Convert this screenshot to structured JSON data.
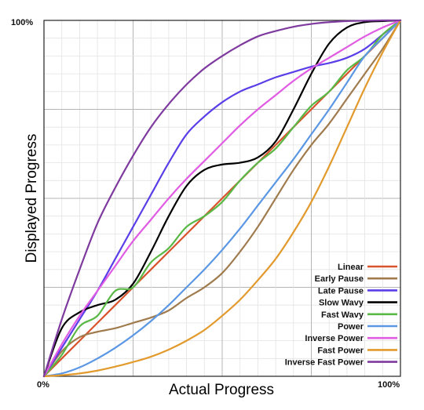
{
  "chart_data": {
    "type": "line",
    "xlabel": "Actual Progress",
    "ylabel": "Displayed Progress",
    "xlim": [
      0,
      100
    ],
    "ylim": [
      0,
      100
    ],
    "x_tick_labels": [
      "0%",
      "100%"
    ],
    "y_tick_labels": [
      "100%"
    ],
    "grid": true,
    "legend_position": "bottom-right",
    "x": [
      0,
      5,
      10,
      15,
      20,
      25,
      30,
      35,
      40,
      45,
      50,
      55,
      60,
      65,
      70,
      75,
      80,
      85,
      90,
      95,
      100
    ],
    "series": [
      {
        "name": "Linear",
        "color": "#d9542c",
        "values": [
          0,
          5,
          10,
          15,
          20,
          25,
          30,
          35,
          40,
          45,
          50,
          55,
          60,
          65,
          70,
          75,
          80,
          85,
          90,
          95,
          100
        ]
      },
      {
        "name": "Early Pause",
        "color": "#a07b4e",
        "values": [
          0,
          7,
          11,
          12.5,
          13.5,
          15,
          16.5,
          18.5,
          22,
          25,
          29,
          35,
          42,
          50,
          58,
          65,
          71,
          78,
          85,
          92,
          100
        ]
      },
      {
        "name": "Late Pause",
        "color": "#5a3ee8",
        "values": [
          0,
          8,
          16,
          24,
          33,
          42,
          51,
          60,
          68,
          73,
          77,
          80,
          82,
          84,
          85.5,
          87,
          88,
          89.5,
          92,
          96,
          100
        ]
      },
      {
        "name": "Slow Wavy",
        "color": "#000000",
        "values": [
          0,
          13.5,
          18,
          20,
          21.5,
          26,
          35,
          45,
          53.5,
          58,
          59.5,
          60,
          61.5,
          66,
          75,
          85,
          93.5,
          98,
          99.5,
          99.8,
          100
        ]
      },
      {
        "name": "Fast Wavy",
        "color": "#5ab846",
        "values": [
          0,
          6,
          14,
          17,
          24,
          25,
          32,
          36,
          42,
          45,
          49,
          55,
          60,
          64,
          70,
          76,
          80,
          86,
          90,
          96,
          100
        ]
      },
      {
        "name": "Power",
        "color": "#5b97e4",
        "values": [
          0,
          0.8,
          2.5,
          5,
          8,
          11.5,
          15.5,
          20,
          25,
          30,
          35.5,
          41.5,
          48,
          54.5,
          61,
          68,
          75,
          82.5,
          90,
          95,
          100
        ]
      },
      {
        "name": "Inverse Power",
        "color": "#e05ce3",
        "values": [
          0,
          9,
          17,
          24,
          31,
          38,
          44,
          50,
          55.5,
          60.5,
          65.5,
          70.5,
          75,
          79,
          83,
          86.5,
          89.5,
          92.5,
          95.5,
          98,
          100
        ]
      },
      {
        "name": "Fast Power",
        "color": "#e39a2d",
        "values": [
          0,
          0.3,
          0.8,
          1.6,
          2.7,
          4,
          5.5,
          7.5,
          10,
          13,
          17,
          21.5,
          27,
          33,
          40.5,
          49,
          59,
          70,
          81,
          91,
          100
        ]
      },
      {
        "name": "Inverse Fast Power",
        "color": "#7e3a9e",
        "values": [
          0,
          16,
          30,
          43,
          53,
          62,
          70,
          76.5,
          82,
          86.5,
          90,
          93,
          95.5,
          97,
          98.2,
          99,
          99.5,
          99.8,
          99.9,
          100,
          100
        ]
      }
    ]
  }
}
